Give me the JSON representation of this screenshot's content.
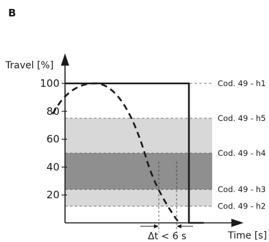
{
  "panel_label": "B",
  "chart_data": {
    "type": "line",
    "ylabel": "Travel [%]",
    "xlabel": "Time [s]",
    "y_ticks": [
      "100",
      "80",
      "60",
      "40",
      "20"
    ],
    "bands": [
      {
        "from": 12,
        "to": 24,
        "shade": "#d8d8d8"
      },
      {
        "from": 24,
        "to": 50,
        "shade": "#8f8f8f"
      },
      {
        "from": 50,
        "to": 75,
        "shade": "#d8d8d8"
      }
    ],
    "code_labels": [
      {
        "text": "Cod. 49 - h1",
        "level": 100
      },
      {
        "text": "Cod. 49 - h5",
        "level": 75
      },
      {
        "text": "Cod. 49 - h4",
        "level": 50
      },
      {
        "text": "Cod. 49 - h3",
        "level": 24
      },
      {
        "text": "Cod. 49 - h2",
        "level": 12
      }
    ],
    "series": [
      {
        "style": "solid",
        "points": [
          [
            0,
            100
          ],
          [
            100,
            100
          ],
          [
            100,
            0
          ],
          [
            112,
            0
          ]
        ]
      },
      {
        "style": "dashed",
        "points": [
          [
            -10,
            78
          ],
          [
            26,
            100
          ],
          [
            65,
            48
          ],
          [
            92,
            0
          ]
        ]
      }
    ],
    "delta_label": "Δt < 6 s"
  }
}
